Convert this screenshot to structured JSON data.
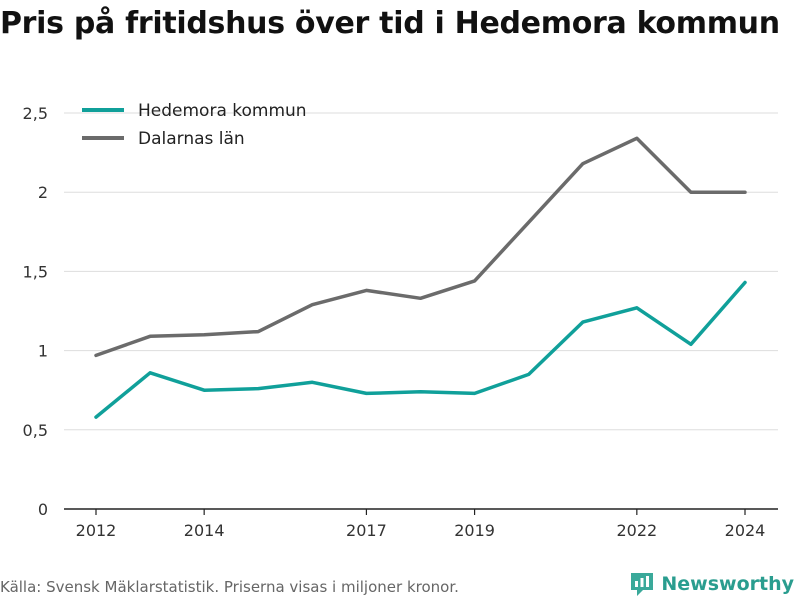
{
  "title": "Pris på fritidshus över tid i Hedemora kommun",
  "source": "Källa: Svensk Mäklarstatistik. Priserna visas i miljoner kronor.",
  "brand": "Newsworthy",
  "colors": {
    "hedemora": "#10a09a",
    "dalarna": "#6b6b6b",
    "grid": "#dddddd",
    "axis": "#222222",
    "brand": "#2a9d8f"
  },
  "chart_data": {
    "type": "line",
    "x": [
      2012,
      2013,
      2014,
      2015,
      2016,
      2017,
      2018,
      2019,
      2020,
      2021,
      2022,
      2023,
      2024
    ],
    "x_ticks": [
      2012,
      2014,
      2017,
      2019,
      2022,
      2024
    ],
    "y_ticks": [
      0,
      0.5,
      1,
      1.5,
      2,
      2.5
    ],
    "y_tick_labels": [
      "0",
      "0,5",
      "1",
      "1,5",
      "2",
      "2,5"
    ],
    "ylim": [
      0,
      2.5
    ],
    "xlim": [
      2012,
      2024
    ],
    "grid": true,
    "legend_position": "top-left",
    "series": [
      {
        "name": "Hedemora kommun",
        "values": [
          0.58,
          0.86,
          0.75,
          0.76,
          0.8,
          0.73,
          0.74,
          0.73,
          0.85,
          1.18,
          1.27,
          1.04,
          1.43
        ]
      },
      {
        "name": "Dalarnas län",
        "values": [
          0.97,
          1.09,
          1.1,
          1.12,
          1.29,
          1.38,
          1.33,
          1.44,
          1.81,
          2.18,
          2.34,
          2.0,
          2.0
        ]
      }
    ]
  }
}
